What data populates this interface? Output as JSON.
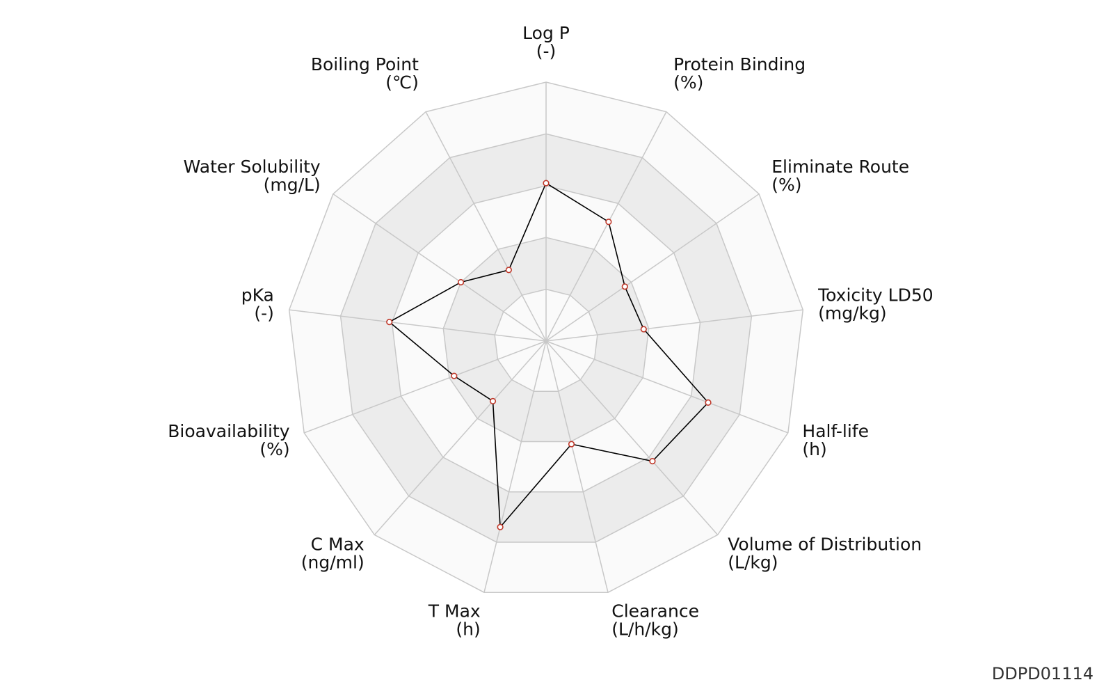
{
  "chart_data": {
    "type": "radar",
    "title": "",
    "axes": [
      {
        "label": "Log P",
        "unit": "(-)"
      },
      {
        "label": "Protein Binding",
        "unit": "(%)"
      },
      {
        "label": "Eliminate Route",
        "unit": "(%)"
      },
      {
        "label": "Toxicity LD50",
        "unit": "(mg/kg)"
      },
      {
        "label": "Half-life",
        "unit": "(h)"
      },
      {
        "label": "Volume of Distribution",
        "unit": "(L/kg)"
      },
      {
        "label": "Clearance",
        "unit": "(L/h/kg)"
      },
      {
        "label": "T Max",
        "unit": "(h)"
      },
      {
        "label": "C Max",
        "unit": "(ng/ml)"
      },
      {
        "label": "Bioavailability",
        "unit": "(%)"
      },
      {
        "label": "pKa",
        "unit": "(-)"
      },
      {
        "label": "Water Solubility",
        "unit": "(mg/L)"
      },
      {
        "label": "Boiling Point",
        "unit": "(℃)"
      }
    ],
    "series": [
      {
        "values": [
          0.61,
          0.52,
          0.37,
          0.38,
          0.67,
          0.62,
          0.41,
          0.74,
          0.31,
          0.38,
          0.61,
          0.4,
          0.31
        ]
      }
    ],
    "range": [
      0,
      1
    ],
    "rings": 5,
    "grid": true,
    "colors": {
      "line": "#000000",
      "marker_edge": "#c0392b",
      "marker_fill": "#ffffff",
      "band_light": "#fafafa",
      "band_dark": "#ececec",
      "grid": "#c8c8c8"
    }
  },
  "footer": {
    "chart_id": "DDPD01114"
  }
}
